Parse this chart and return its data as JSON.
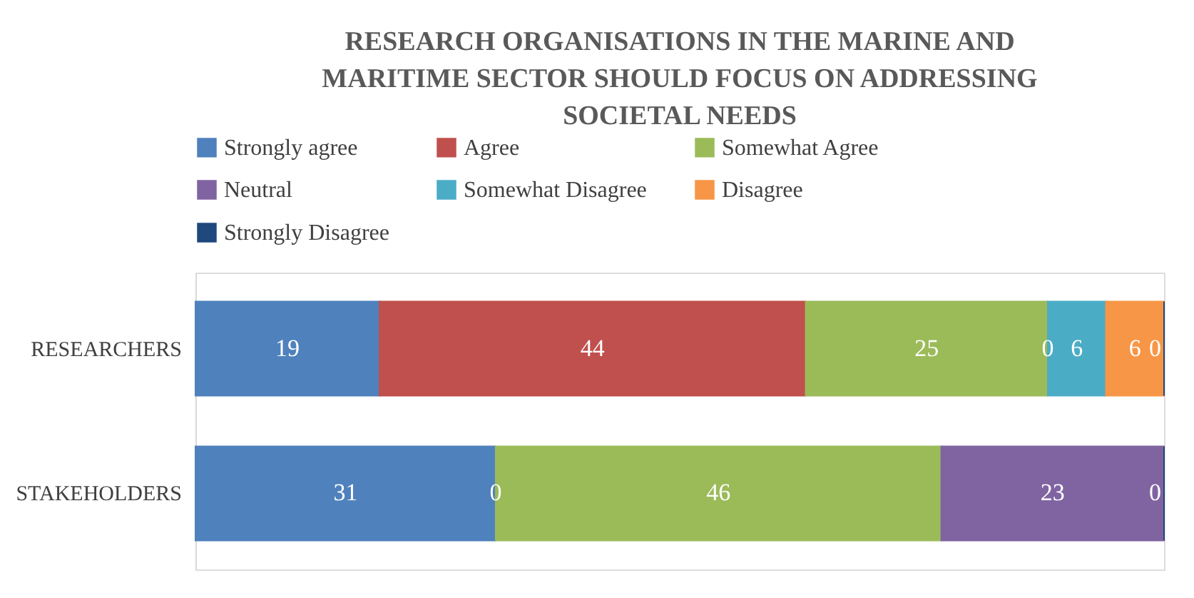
{
  "chart_data": {
    "type": "bar",
    "orientation": "horizontal",
    "stacked": true,
    "title": "RESEARCH ORGANISATIONS IN THE MARINE AND MARITIME SECTOR SHOULD FOCUS ON ADDRESSING SOCIETAL NEEDS",
    "categories": [
      "RESEARCHERS",
      "STAKEHOLDERS"
    ],
    "series": [
      {
        "name": "Strongly agree",
        "color": "#4f81bd",
        "values": [
          19,
          31
        ],
        "value_labels": [
          "19",
          "31"
        ]
      },
      {
        "name": "Agree",
        "color": "#c0504d",
        "values": [
          44,
          0
        ],
        "value_labels": [
          "44",
          "0"
        ]
      },
      {
        "name": "Somewhat Agree",
        "color": "#9bbb59",
        "values": [
          25,
          46
        ],
        "value_labels": [
          "25",
          "46"
        ]
      },
      {
        "name": "Neutral",
        "color": "#8064a2",
        "values": [
          0,
          23
        ],
        "value_labels": [
          "0",
          "23"
        ]
      },
      {
        "name": "Somewhat Disagree",
        "color": "#4bacc6",
        "values": [
          6,
          0
        ],
        "value_labels": [
          "6",
          null
        ]
      },
      {
        "name": "Disagree",
        "color": "#f79646",
        "values": [
          6,
          0
        ],
        "value_labels": [
          "6",
          null
        ]
      },
      {
        "name": "Strongly Disagree",
        "color": "#1f497d",
        "values": [
          0,
          0
        ],
        "value_labels": [
          "0",
          "0"
        ]
      }
    ],
    "xlim": [
      0,
      100
    ],
    "tick_labels": "y",
    "legend": "top"
  }
}
